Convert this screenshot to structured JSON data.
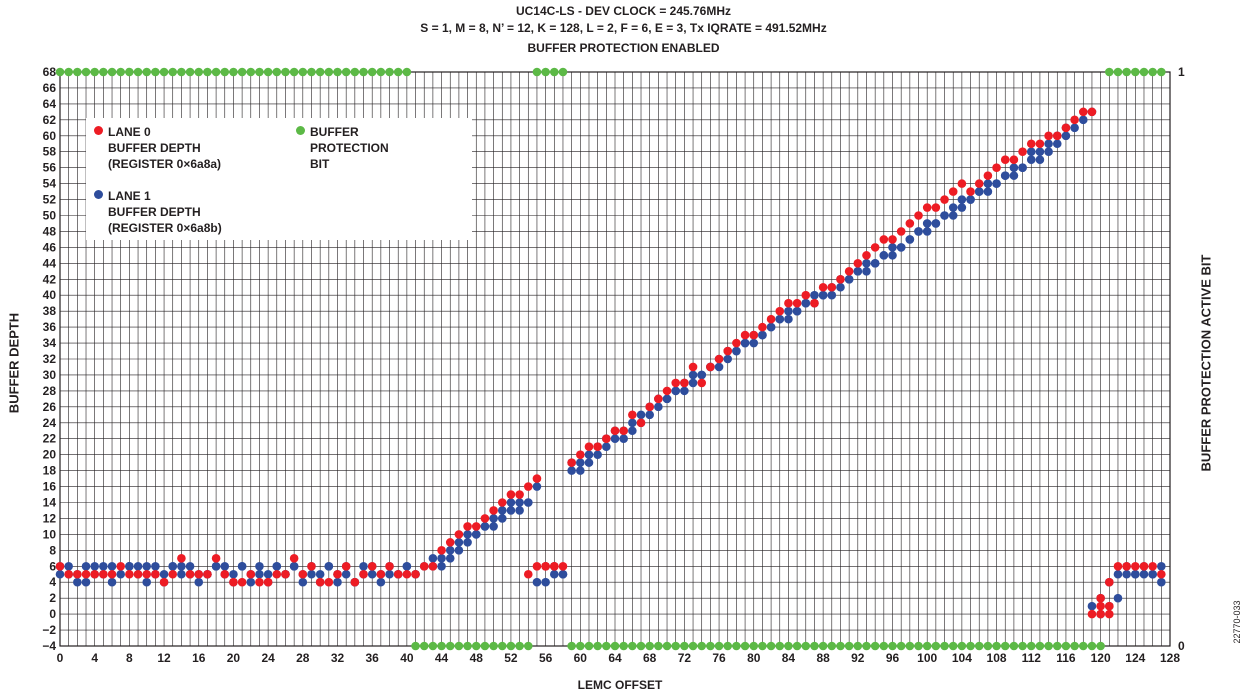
{
  "chart_data": {
    "type": "scatter",
    "title_lines": [
      "UC14C-LS - DEV CLOCK = 245.76MHz",
      "S = 1, M = 8, N’ = 12, K = 128, L = 2, F = 6, E = 3, Tx IQRATE = 491.52MHz",
      "BUFFER PROTECTION ENABLED"
    ],
    "xlabel": "LEMC OFFSET",
    "ylabel_left": "BUFFER DEPTH",
    "ylabel_right": "BUFFER PROTECTION ACTIVE BIT",
    "figure_id": "22770-033",
    "xlim": [
      0,
      128
    ],
    "ylim_left": [
      -4,
      68
    ],
    "ylim_right": [
      0,
      1
    ],
    "x_ticks": [
      0,
      4,
      8,
      12,
      16,
      20,
      24,
      28,
      32,
      36,
      40,
      44,
      48,
      52,
      56,
      60,
      64,
      68,
      72,
      76,
      80,
      84,
      88,
      92,
      96,
      100,
      104,
      108,
      112,
      116,
      120,
      124,
      128
    ],
    "y_ticks_left": [
      -4,
      -2,
      0,
      2,
      4,
      6,
      8,
      10,
      12,
      14,
      16,
      18,
      20,
      22,
      24,
      26,
      28,
      30,
      32,
      34,
      36,
      38,
      40,
      42,
      44,
      46,
      48,
      50,
      52,
      54,
      56,
      58,
      60,
      62,
      64,
      66,
      68
    ],
    "y_ticks_right": [
      0,
      1
    ],
    "grid": true,
    "legend_position": "top-left",
    "series": [
      {
        "name": "LANE 0\nBUFFER DEPTH\n(REGISTER 0×6a8a)",
        "color": "#ed1c24",
        "axis": "left",
        "x": [
          0,
          1,
          2,
          3,
          4,
          5,
          6,
          7,
          8,
          9,
          10,
          11,
          12,
          13,
          14,
          15,
          16,
          17,
          18,
          19,
          20,
          21,
          22,
          23,
          24,
          25,
          26,
          27,
          28,
          29,
          30,
          31,
          32,
          33,
          34,
          35,
          36,
          37,
          38,
          39,
          40,
          41,
          42,
          43,
          44,
          45,
          46,
          47,
          48,
          49,
          50,
          51,
          52,
          53,
          54,
          55,
          56,
          57,
          58,
          59,
          60,
          61,
          62,
          63,
          64,
          65,
          66,
          67,
          68,
          69,
          70,
          71,
          72,
          73,
          74,
          75,
          76,
          77,
          78,
          79,
          80,
          81,
          82,
          83,
          84,
          85,
          86,
          87,
          88,
          89,
          90,
          91,
          92,
          93,
          94,
          95,
          96,
          97,
          98,
          99,
          100,
          101,
          102,
          103,
          104,
          105,
          106,
          107,
          108,
          109,
          110,
          111,
          112,
          113,
          114,
          115,
          116,
          117,
          118,
          119,
          120,
          121,
          122,
          123,
          124,
          125,
          126,
          127
        ],
        "y": [
          6,
          5,
          5,
          5,
          5,
          5,
          5,
          6,
          5,
          5,
          5,
          5,
          4,
          5,
          7,
          5,
          5,
          5,
          7,
          5,
          4,
          4,
          5,
          4,
          4,
          5,
          5,
          7,
          5,
          6,
          4,
          4,
          5,
          6,
          4,
          5,
          6,
          5,
          6,
          5,
          5,
          5,
          6,
          6,
          8,
          9,
          10,
          11,
          11,
          12,
          13,
          14,
          15,
          15,
          16,
          17,
          6,
          6,
          6,
          19,
          20,
          21,
          21,
          22,
          23,
          23,
          25,
          24,
          26,
          27,
          28,
          29,
          29,
          31,
          29,
          31,
          32,
          33,
          34,
          35,
          35,
          36,
          37,
          38,
          39,
          39,
          40,
          39,
          41,
          41,
          42,
          43,
          44,
          45,
          46,
          47,
          47,
          48,
          49,
          50,
          51,
          51,
          52,
          53,
          54,
          53,
          54,
          55,
          56,
          57,
          57,
          58,
          59,
          59,
          60,
          60,
          61,
          62,
          63,
          63,
          2,
          4,
          6,
          6,
          6,
          6,
          6,
          5
        ],
        "x_extra": [
          54,
          55,
          56,
          57,
          119,
          120,
          121,
          120,
          121
        ],
        "y_extra": [
          5,
          6,
          6,
          6,
          0,
          1,
          1,
          0,
          0
        ]
      },
      {
        "name": "LANE 1\nBUFFER DEPTH\n(REGISTER 0×6a8b)",
        "color": "#2e4d9c",
        "axis": "left",
        "x": [
          0,
          1,
          2,
          3,
          4,
          5,
          6,
          7,
          8,
          9,
          10,
          11,
          12,
          13,
          14,
          15,
          16,
          17,
          18,
          19,
          20,
          21,
          22,
          23,
          24,
          25,
          26,
          27,
          28,
          29,
          30,
          31,
          32,
          33,
          34,
          35,
          36,
          37,
          38,
          39,
          40,
          41,
          42,
          43,
          44,
          45,
          46,
          47,
          48,
          49,
          50,
          51,
          52,
          53,
          54,
          55,
          56,
          57,
          58,
          59,
          60,
          61,
          62,
          63,
          64,
          65,
          66,
          67,
          68,
          69,
          70,
          71,
          72,
          73,
          74,
          75,
          76,
          77,
          78,
          79,
          80,
          81,
          82,
          83,
          84,
          85,
          86,
          87,
          88,
          89,
          90,
          91,
          92,
          93,
          94,
          95,
          96,
          97,
          98,
          99,
          100,
          101,
          102,
          103,
          104,
          105,
          106,
          107,
          108,
          109,
          110,
          111,
          112,
          113,
          114,
          115,
          116,
          117,
          118,
          119,
          120,
          121,
          122,
          123,
          124,
          125,
          126,
          127
        ],
        "y": [
          5,
          6,
          4,
          6,
          5,
          6,
          4,
          5,
          6,
          5,
          4,
          5,
          5,
          6,
          6,
          6,
          4,
          5,
          6,
          6,
          5,
          6,
          5,
          6,
          5,
          6,
          5,
          6,
          4,
          5,
          5,
          6,
          5,
          6,
          4,
          5,
          6,
          4,
          6,
          5,
          6,
          5,
          6,
          7,
          7,
          8,
          9,
          10,
          10,
          11,
          12,
          13,
          14,
          13,
          14,
          16,
          4,
          5,
          5,
          18,
          19,
          20,
          20,
          21,
          22,
          22,
          23,
          24,
          26,
          26,
          27,
          28,
          28,
          30,
          30,
          31,
          32,
          33,
          33,
          34,
          34,
          35,
          36,
          37,
          37,
          38,
          39,
          39,
          40,
          40,
          41,
          42,
          43,
          43,
          44,
          45,
          45,
          46,
          47,
          48,
          48,
          49,
          50,
          50,
          51,
          52,
          53,
          53,
          54,
          55,
          55,
          56,
          57,
          57,
          58,
          59,
          60,
          61,
          62,
          63,
          0,
          1,
          2,
          5,
          5,
          5,
          5,
          4
        ],
        "x_extra": [
          0,
          1,
          2,
          3,
          4,
          5,
          6,
          8,
          9,
          10,
          11,
          12,
          13,
          14,
          15,
          16,
          17,
          18,
          19,
          20,
          21,
          22,
          23,
          24,
          25,
          26,
          27,
          28,
          29,
          30,
          31,
          32,
          33,
          34,
          35,
          36,
          37,
          38,
          39,
          40,
          41,
          43,
          44,
          45,
          46,
          47,
          48,
          49,
          50,
          51,
          52,
          53,
          54,
          55,
          56,
          57,
          58,
          59,
          60,
          61,
          62,
          63,
          64,
          65,
          66,
          67,
          68,
          69,
          70,
          71,
          72,
          73,
          74,
          75,
          76,
          77,
          78,
          79,
          80,
          81,
          82,
          83,
          84,
          85,
          86,
          87,
          88,
          89,
          90,
          91,
          92,
          93,
          94,
          95,
          96,
          97,
          98,
          99,
          100,
          101,
          102,
          103,
          104,
          105,
          106,
          107,
          108,
          109,
          110,
          111,
          112,
          113,
          114,
          115,
          116,
          119,
          120,
          121,
          122,
          123,
          124,
          125,
          126,
          127
        ],
        "y_extra": [
          6,
          5,
          5,
          4,
          6,
          5,
          6,
          6,
          6,
          6,
          6,
          4,
          6,
          5,
          5,
          5,
          5,
          6,
          5,
          4,
          6,
          4,
          5,
          4,
          6,
          5,
          6,
          5,
          6,
          4,
          6,
          4,
          5,
          4,
          6,
          5,
          5,
          5,
          5,
          6,
          5,
          6,
          6,
          7,
          8,
          9,
          10,
          11,
          11,
          12,
          13,
          14,
          14,
          4,
          6,
          6,
          5,
          19,
          18,
          19,
          21,
          22,
          23,
          23,
          24,
          25,
          25,
          27,
          27,
          28,
          29,
          29,
          30,
          31,
          31,
          32,
          33,
          34,
          35,
          35,
          36,
          37,
          38,
          38,
          39,
          40,
          40,
          41,
          42,
          42,
          43,
          44,
          44,
          45,
          46,
          46,
          47,
          48,
          49,
          49,
          50,
          51,
          52,
          52,
          53,
          54,
          54,
          55,
          56,
          56,
          58,
          58,
          59,
          60,
          61,
          1,
          2,
          4,
          5,
          6,
          5,
          6,
          5,
          6
        ]
      },
      {
        "name": "BUFFER\nPROTECTION\nBIT",
        "color": "#5cb946",
        "axis": "right",
        "segments": [
          {
            "x_from": 0,
            "x_to": 40,
            "y": 1
          },
          {
            "x_from": 41,
            "x_to": 54,
            "y": 0
          },
          {
            "x_from": 55,
            "x_to": 58,
            "y": 1
          },
          {
            "x_from": 59,
            "x_to": 120,
            "y": 0
          },
          {
            "x_from": 121,
            "x_to": 127,
            "y": 1
          }
        ]
      }
    ]
  },
  "legend": {
    "lane0_lines": [
      "LANE 0",
      "BUFFER DEPTH",
      "(REGISTER 0×6a8a)"
    ],
    "lane1_lines": [
      "LANE 1",
      "BUFFER DEPTH",
      "(REGISTER 0×6a8b)"
    ],
    "prot_lines": [
      "BUFFER",
      "PROTECTION",
      "BIT"
    ]
  }
}
